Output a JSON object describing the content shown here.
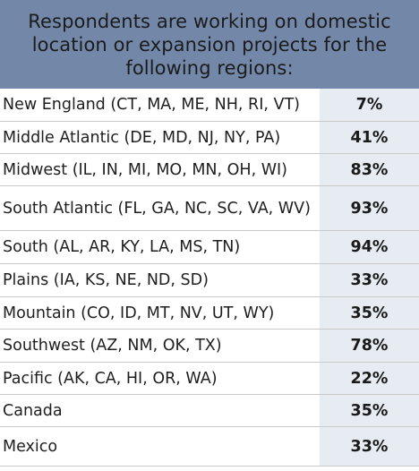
{
  "chart_data": {
    "type": "table",
    "title": "Respondents are working on domestic location or expansion projects for the following regions:",
    "rows": [
      {
        "region": "New England (CT, MA, ME, NH, RI, VT)",
        "value": 7,
        "label": "7%"
      },
      {
        "region": "Middle Atlantic (DE, MD, NJ, NY, PA)",
        "value": 41,
        "label": "41%"
      },
      {
        "region": "Midwest (IL, IN, MI, MO, MN, OH, WI)",
        "value": 83,
        "label": "83%"
      },
      {
        "region": "South Atlantic (FL, GA, NC, SC, VA, WV)",
        "value": 93,
        "label": "93%"
      },
      {
        "region": "South (AL, AR, KY, LA, MS, TN)",
        "value": 94,
        "label": "94%"
      },
      {
        "region": "Plains (IA, KS, NE, ND, SD)",
        "value": 33,
        "label": "33%"
      },
      {
        "region": "Mountain (CO, ID, MT, NV, UT, WY)",
        "value": 35,
        "label": "35%"
      },
      {
        "region": "Southwest (AZ, NM, OK, TX)",
        "value": 78,
        "label": "78%"
      },
      {
        "region": "Pacific (AK, CA, HI, OR, WA)",
        "value": 22,
        "label": "22%"
      },
      {
        "region": "Canada",
        "value": 35,
        "label": "35%"
      },
      {
        "region": "Mexico",
        "value": 33,
        "label": "33%"
      }
    ],
    "colors": {
      "header_background": "#7388a9",
      "value_column_background": "#e7ebf2",
      "row_divider": "#c9c9c9",
      "text": "#1e1e1e"
    }
  }
}
